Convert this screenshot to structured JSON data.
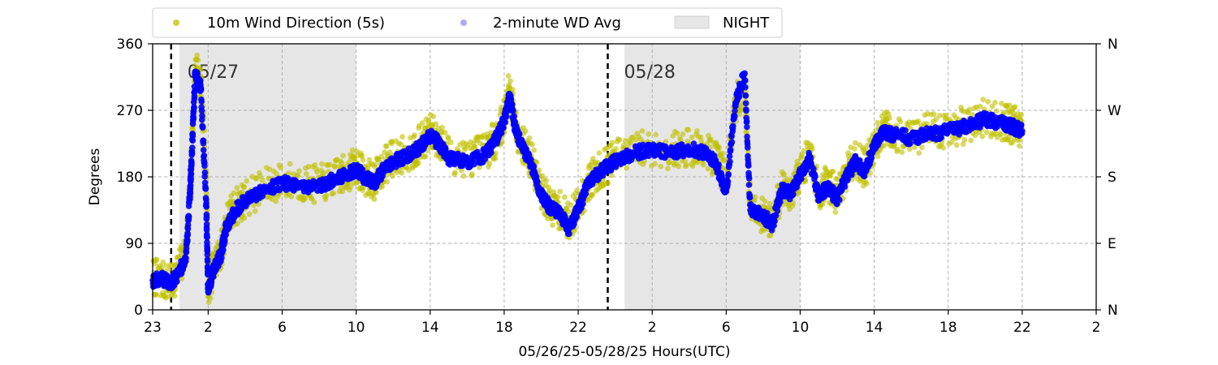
{
  "chart_data": {
    "type": "scatter",
    "title": "",
    "xlabel": "05/26/25-05/28/25  Hours(UTC)",
    "ylabel": "Degrees",
    "xlim": [
      0,
      51
    ],
    "ylim": [
      0,
      360
    ],
    "x_ticks": [
      {
        "x": 0,
        "label": "23"
      },
      {
        "x": 3,
        "label": "2"
      },
      {
        "x": 7,
        "label": "6"
      },
      {
        "x": 11,
        "label": "10"
      },
      {
        "x": 15,
        "label": "14"
      },
      {
        "x": 19,
        "label": "18"
      },
      {
        "x": 23,
        "label": "22"
      },
      {
        "x": 27,
        "label": "2"
      },
      {
        "x": 31,
        "label": "6"
      },
      {
        "x": 35,
        "label": "10"
      },
      {
        "x": 39,
        "label": "14"
      },
      {
        "x": 43,
        "label": "18"
      },
      {
        "x": 47,
        "label": "22"
      },
      {
        "x": 51,
        "label": "2"
      }
    ],
    "y_ticks": [
      0,
      90,
      180,
      270,
      360
    ],
    "y_ticks_right": [
      {
        "y": 0,
        "label": "N"
      },
      {
        "y": 90,
        "label": "E"
      },
      {
        "y": 180,
        "label": "S"
      },
      {
        "y": 270,
        "label": "W"
      },
      {
        "y": 360,
        "label": "N"
      }
    ],
    "grid": true,
    "night_bands": [
      [
        1.45,
        11.0
      ],
      [
        25.5,
        35.0
      ]
    ],
    "day_markers": [
      {
        "x": 1.0,
        "label": "05/27"
      },
      {
        "x": 24.6,
        "label": "05/28"
      }
    ],
    "series": [
      {
        "name": "10m Wind Direction (5s)",
        "color": "#bfbf00",
        "points": [
          [
            0.0,
            45
          ],
          [
            0.5,
            40
          ],
          [
            1.0,
            35
          ],
          [
            1.5,
            60
          ],
          [
            1.8,
            80
          ],
          [
            2.1,
            200
          ],
          [
            2.3,
            330
          ],
          [
            2.6,
            310
          ],
          [
            2.9,
            180
          ],
          [
            3.0,
            30
          ],
          [
            3.3,
            60
          ],
          [
            3.7,
            80
          ],
          [
            4.0,
            120
          ],
          [
            4.5,
            140
          ],
          [
            5.0,
            150
          ],
          [
            6.0,
            165
          ],
          [
            7.0,
            175
          ],
          [
            8.0,
            172
          ],
          [
            9.0,
            170
          ],
          [
            10.0,
            180
          ],
          [
            10.5,
            185
          ],
          [
            11.0,
            195
          ],
          [
            11.5,
            180
          ],
          [
            12.0,
            175
          ],
          [
            12.5,
            195
          ],
          [
            13.0,
            205
          ],
          [
            14.0,
            215
          ],
          [
            14.5,
            225
          ],
          [
            15.0,
            240
          ],
          [
            15.5,
            230
          ],
          [
            16.0,
            210
          ],
          [
            17.0,
            205
          ],
          [
            18.0,
            215
          ],
          [
            18.5,
            230
          ],
          [
            19.0,
            260
          ],
          [
            19.3,
            300
          ],
          [
            19.6,
            250
          ],
          [
            20.0,
            225
          ],
          [
            20.5,
            200
          ],
          [
            21.0,
            160
          ],
          [
            21.5,
            140
          ],
          [
            22.0,
            135
          ],
          [
            22.5,
            120
          ],
          [
            23.0,
            140
          ],
          [
            23.5,
            170
          ],
          [
            24.0,
            185
          ],
          [
            24.5,
            195
          ],
          [
            25.0,
            205
          ],
          [
            26.0,
            215
          ],
          [
            27.0,
            220
          ],
          [
            28.0,
            215
          ],
          [
            29.0,
            220
          ],
          [
            30.0,
            215
          ],
          [
            30.5,
            200
          ],
          [
            31.0,
            180
          ],
          [
            31.5,
            280
          ],
          [
            32.0,
            300
          ],
          [
            32.3,
            140
          ],
          [
            33.0,
            130
          ],
          [
            33.5,
            120
          ],
          [
            34.0,
            165
          ],
          [
            34.5,
            160
          ],
          [
            35.0,
            185
          ],
          [
            35.5,
            210
          ],
          [
            36.0,
            160
          ],
          [
            36.5,
            170
          ],
          [
            37.0,
            155
          ],
          [
            37.5,
            185
          ],
          [
            38.0,
            205
          ],
          [
            38.5,
            190
          ],
          [
            39.0,
            225
          ],
          [
            39.5,
            245
          ],
          [
            40.0,
            240
          ],
          [
            41.0,
            235
          ],
          [
            42.0,
            240
          ],
          [
            43.0,
            245
          ],
          [
            44.0,
            250
          ],
          [
            45.0,
            260
          ],
          [
            46.0,
            255
          ],
          [
            46.5,
            250
          ],
          [
            47.0,
            245
          ]
        ]
      },
      {
        "name": "2-minute WD Avg",
        "color": "#0000ff",
        "points": [
          [
            0.0,
            40
          ],
          [
            0.5,
            42
          ],
          [
            1.0,
            35
          ],
          [
            1.5,
            55
          ],
          [
            1.8,
            70
          ],
          [
            2.0,
            150
          ],
          [
            2.1,
            200
          ],
          [
            2.3,
            320
          ],
          [
            2.6,
            300
          ],
          [
            2.9,
            140
          ],
          [
            3.0,
            25
          ],
          [
            3.3,
            55
          ],
          [
            3.7,
            75
          ],
          [
            4.0,
            115
          ],
          [
            4.5,
            135
          ],
          [
            5.0,
            148
          ],
          [
            6.0,
            162
          ],
          [
            7.0,
            172
          ],
          [
            8.0,
            168
          ],
          [
            9.0,
            168
          ],
          [
            10.0,
            178
          ],
          [
            10.5,
            182
          ],
          [
            11.0,
            190
          ],
          [
            11.5,
            178
          ],
          [
            12.0,
            172
          ],
          [
            12.5,
            190
          ],
          [
            13.0,
            200
          ],
          [
            14.0,
            212
          ],
          [
            14.5,
            222
          ],
          [
            15.0,
            235
          ],
          [
            15.5,
            225
          ],
          [
            16.0,
            205
          ],
          [
            17.0,
            200
          ],
          [
            18.0,
            210
          ],
          [
            18.5,
            228
          ],
          [
            19.0,
            255
          ],
          [
            19.3,
            290
          ],
          [
            19.6,
            245
          ],
          [
            20.0,
            220
          ],
          [
            20.5,
            195
          ],
          [
            21.0,
            155
          ],
          [
            21.5,
            138
          ],
          [
            22.0,
            130
          ],
          [
            22.5,
            110
          ],
          [
            23.0,
            135
          ],
          [
            23.5,
            168
          ],
          [
            24.0,
            182
          ],
          [
            24.5,
            192
          ],
          [
            25.0,
            200
          ],
          [
            26.0,
            212
          ],
          [
            27.0,
            218
          ],
          [
            28.0,
            212
          ],
          [
            29.0,
            218
          ],
          [
            30.0,
            212
          ],
          [
            30.5,
            195
          ],
          [
            31.0,
            160
          ],
          [
            31.5,
            280
          ],
          [
            32.0,
            320
          ],
          [
            32.3,
            135
          ],
          [
            33.0,
            128
          ],
          [
            33.5,
            115
          ],
          [
            34.0,
            162
          ],
          [
            34.5,
            158
          ],
          [
            35.0,
            182
          ],
          [
            35.5,
            205
          ],
          [
            36.0,
            155
          ],
          [
            36.5,
            165
          ],
          [
            37.0,
            150
          ],
          [
            37.5,
            180
          ],
          [
            38.0,
            200
          ],
          [
            38.5,
            188
          ],
          [
            39.0,
            222
          ],
          [
            39.5,
            240
          ],
          [
            40.0,
            238
          ],
          [
            41.0,
            232
          ],
          [
            42.0,
            238
          ],
          [
            43.0,
            242
          ],
          [
            44.0,
            248
          ],
          [
            45.0,
            258
          ],
          [
            46.0,
            252
          ],
          [
            46.5,
            248
          ],
          [
            47.0,
            242
          ]
        ]
      }
    ],
    "legend": {
      "position": "top-left",
      "items": [
        {
          "label": "10m Wind Direction (5s)",
          "kind": "marker",
          "color": "#bfbf00"
        },
        {
          "label": "2-minute WD Avg",
          "kind": "marker",
          "color": "#8f8ff0"
        },
        {
          "label": "NIGHT",
          "kind": "patch",
          "color": "#e6e6e6"
        }
      ]
    }
  }
}
